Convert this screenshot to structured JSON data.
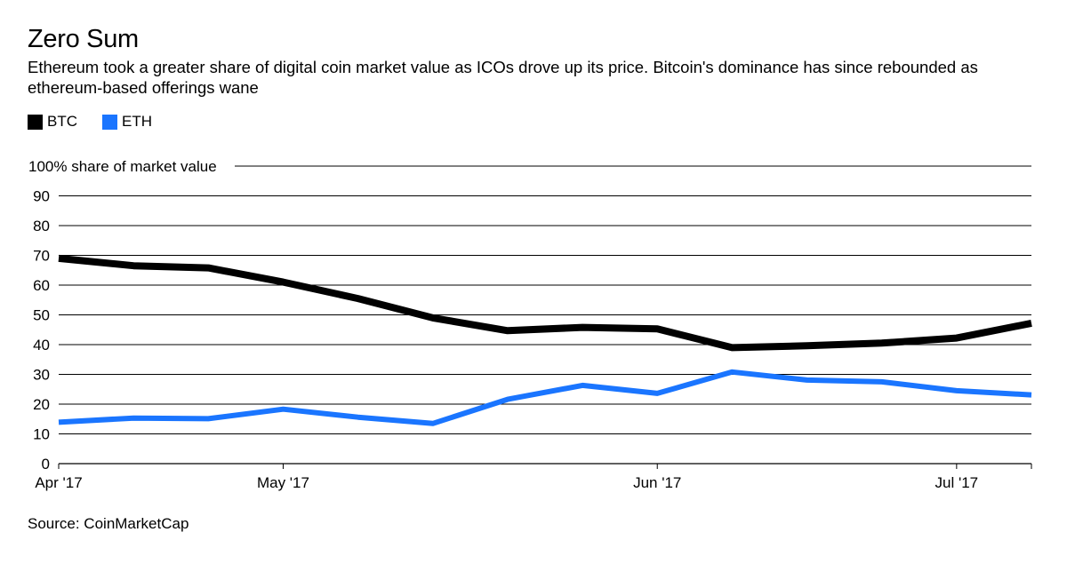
{
  "header": {
    "title": "Zero Sum",
    "subtitle": "Ethereum took a greater share of digital coin market value as ICOs drove up its price. Bitcoin's dominance has since rebounded as ethereum-based offerings wane"
  },
  "source": "Source: CoinMarketCap",
  "chart_data": {
    "type": "line",
    "title": "Zero Sum",
    "ylabel": "share of market value",
    "ylim": [
      0,
      100
    ],
    "y_ticks": [
      0,
      10,
      20,
      30,
      40,
      50,
      60,
      70,
      80,
      90,
      100
    ],
    "y_top_label": "100% share of market value",
    "x_tick_labels": [
      {
        "label": "Apr '17",
        "index": 0
      },
      {
        "label": "May '17",
        "index": 3
      },
      {
        "label": "Jun '17",
        "index": 8
      },
      {
        "label": "Jul '17",
        "index": 12
      }
    ],
    "x_count": 14,
    "series": [
      {
        "name": "BTC",
        "color": "#000000",
        "values": [
          69,
          66.5,
          65.8,
          61,
          55.5,
          49,
          44.7,
          45.8,
          45.3,
          39,
          39.6,
          40.5,
          42.2,
          47.2
        ]
      },
      {
        "name": "ETH",
        "color": "#1a75ff",
        "values": [
          13.9,
          15.3,
          15.1,
          18.3,
          15.6,
          13.5,
          21.6,
          26.3,
          23.6,
          30.8,
          28.1,
          27.5,
          24.5,
          23.1
        ]
      }
    ],
    "legend": "top-left"
  }
}
